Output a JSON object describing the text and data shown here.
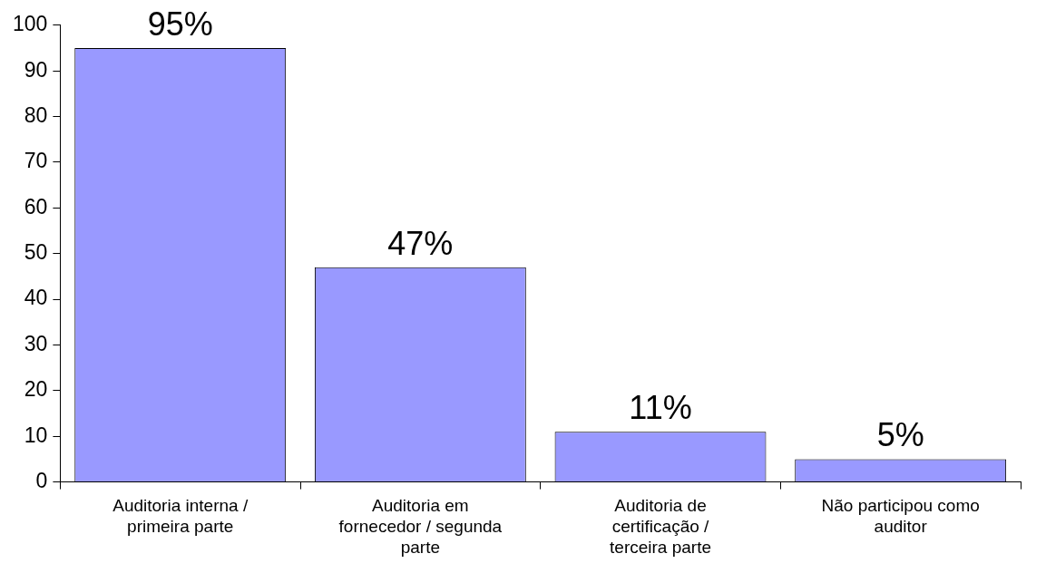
{
  "chart_data": {
    "type": "bar",
    "categories": [
      "Auditoria interna / primeira parte",
      "Auditoria em fornecedor / segunda parte",
      "Auditoria de certificação / terceira parte",
      "Não participou como auditor"
    ],
    "values": [
      95,
      47,
      11,
      5
    ],
    "value_labels": [
      "95%",
      "47%",
      "11%",
      "5%"
    ],
    "color": "#9999ff",
    "ylim": [
      0,
      100
    ],
    "yticks": [
      0,
      10,
      20,
      30,
      40,
      50,
      60,
      70,
      80,
      90,
      100
    ],
    "grid": false,
    "legend": false
  }
}
